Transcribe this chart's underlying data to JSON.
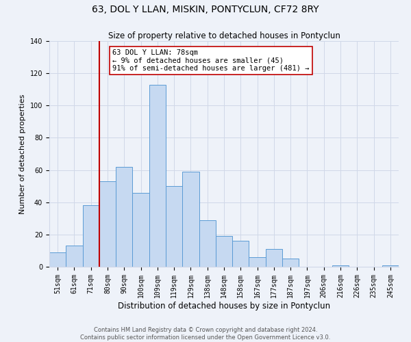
{
  "title": "63, DOL Y LLAN, MISKIN, PONTYCLUN, CF72 8RY",
  "subtitle": "Size of property relative to detached houses in Pontyclun",
  "xlabel": "Distribution of detached houses by size in Pontyclun",
  "ylabel": "Number of detached properties",
  "footnote1": "Contains HM Land Registry data © Crown copyright and database right 2024.",
  "footnote2": "Contains public sector information licensed under the Open Government Licence v3.0.",
  "bar_labels": [
    "51sqm",
    "61sqm",
    "71sqm",
    "80sqm",
    "90sqm",
    "100sqm",
    "109sqm",
    "119sqm",
    "129sqm",
    "138sqm",
    "148sqm",
    "158sqm",
    "167sqm",
    "177sqm",
    "187sqm",
    "197sqm",
    "206sqm",
    "216sqm",
    "226sqm",
    "235sqm",
    "245sqm"
  ],
  "bar_heights": [
    9,
    13,
    38,
    53,
    62,
    46,
    113,
    50,
    59,
    29,
    19,
    16,
    6,
    11,
    5,
    0,
    0,
    1,
    0,
    0,
    1
  ],
  "bar_color": "#c6d9f1",
  "bar_edge_color": "#5b9bd5",
  "vline_x": 2.5,
  "vline_color": "#c00000",
  "ylim": [
    0,
    140
  ],
  "yticks": [
    0,
    20,
    40,
    60,
    80,
    100,
    120,
    140
  ],
  "annotation_text": "63 DOL Y LLAN: 78sqm\n← 9% of detached houses are smaller (45)\n91% of semi-detached houses are larger (481) →",
  "annotation_box_facecolor": "#ffffff",
  "annotation_box_edgecolor": "#c00000",
  "grid_color": "#d0d8e8",
  "background_color": "#eef2f9",
  "title_fontsize": 10,
  "subtitle_fontsize": 8.5,
  "xlabel_fontsize": 8.5,
  "ylabel_fontsize": 8,
  "tick_fontsize": 7,
  "annot_fontsize": 7.5,
  "footnote_fontsize": 6
}
